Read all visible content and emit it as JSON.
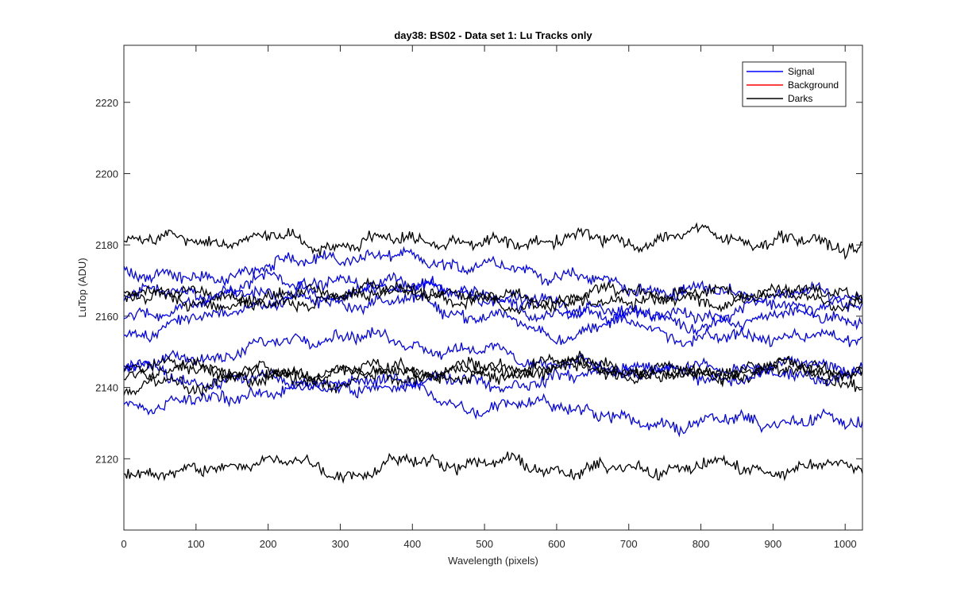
{
  "chart_data": {
    "type": "line",
    "title": "day38: BS02 - Data set 1: Lu Tracks only",
    "xlabel": "Wavelength (pixels)",
    "ylabel": "LuTop (ADU)",
    "xlim": [
      0,
      1024
    ],
    "ylim": [
      2100,
      2236
    ],
    "xticks": [
      0,
      100,
      200,
      300,
      400,
      500,
      600,
      700,
      800,
      900,
      1000
    ],
    "yticks": [
      2120,
      2140,
      2160,
      2180,
      2200,
      2220
    ],
    "grid": false,
    "legend_position": "top-right",
    "legend": [
      {
        "label": "Signal",
        "color": "#0000ff"
      },
      {
        "label": "Background",
        "color": "#ff0000"
      },
      {
        "label": "Darks",
        "color": "#000000"
      }
    ],
    "x_sample": [
      0,
      100,
      200,
      300,
      400,
      500,
      600,
      700,
      800,
      900,
      1024
    ],
    "series": [
      {
        "group": "Signal",
        "color": "#0000ff",
        "values": [
          2173,
          2170,
          2174,
          2177,
          2176,
          2174,
          2172,
          2168,
          2167,
          2166,
          2166
        ]
      },
      {
        "group": "Signal",
        "color": "#0000ff",
        "values": [
          2167,
          2166,
          2170,
          2166,
          2170,
          2165,
          2160,
          2162,
          2159,
          2160,
          2160
        ]
      },
      {
        "group": "Signal",
        "color": "#0000ff",
        "values": [
          2159,
          2164,
          2167,
          2169,
          2168,
          2166,
          2163,
          2160,
          2158,
          2164,
          2162
        ]
      },
      {
        "group": "Signal",
        "color": "#0000ff",
        "values": [
          2155,
          2159,
          2164,
          2164,
          2164,
          2160,
          2155,
          2158,
          2153,
          2155,
          2153
        ]
      },
      {
        "group": "Signal",
        "color": "#0000ff",
        "values": [
          2146,
          2148,
          2152,
          2155,
          2152,
          2150,
          2147,
          2145,
          2145,
          2146,
          2146
        ]
      },
      {
        "group": "Signal",
        "color": "#0000ff",
        "values": [
          2146,
          2142,
          2142,
          2140,
          2143,
          2141,
          2142,
          2146,
          2143,
          2143,
          2144
        ]
      },
      {
        "group": "Signal",
        "color": "#0000ff",
        "values": [
          2135,
          2136,
          2139,
          2141,
          2139,
          2134,
          2136,
          2130,
          2130,
          2131,
          2130
        ]
      },
      {
        "group": "Darks",
        "color": "#000000",
        "values": [
          2182,
          2181,
          2182,
          2180,
          2182,
          2180,
          2182,
          2181,
          2183,
          2181,
          2180
        ]
      },
      {
        "group": "Darks",
        "color": "#000000",
        "values": [
          2168,
          2166,
          2165,
          2167,
          2166,
          2165,
          2165,
          2167,
          2166,
          2167,
          2166
        ]
      },
      {
        "group": "Darks",
        "color": "#000000",
        "values": [
          2165,
          2164,
          2163,
          2166,
          2168,
          2164,
          2163,
          2165,
          2164,
          2166,
          2164
        ]
      },
      {
        "group": "Darks",
        "color": "#000000",
        "values": [
          2145,
          2146,
          2143,
          2145,
          2145,
          2144,
          2146,
          2144,
          2143,
          2146,
          2145
        ]
      },
      {
        "group": "Darks",
        "color": "#000000",
        "values": [
          2143,
          2141,
          2145,
          2144,
          2143,
          2146,
          2147,
          2145,
          2144,
          2146,
          2144
        ]
      },
      {
        "group": "Darks",
        "color": "#000000",
        "values": [
          2140,
          2146,
          2142,
          2142,
          2145,
          2142,
          2146,
          2145,
          2143,
          2145,
          2141
        ]
      },
      {
        "group": "Darks",
        "color": "#000000",
        "values": [
          2117,
          2116,
          2120,
          2116,
          2119,
          2119,
          2117,
          2117,
          2118,
          2117,
          2118
        ]
      }
    ]
  }
}
